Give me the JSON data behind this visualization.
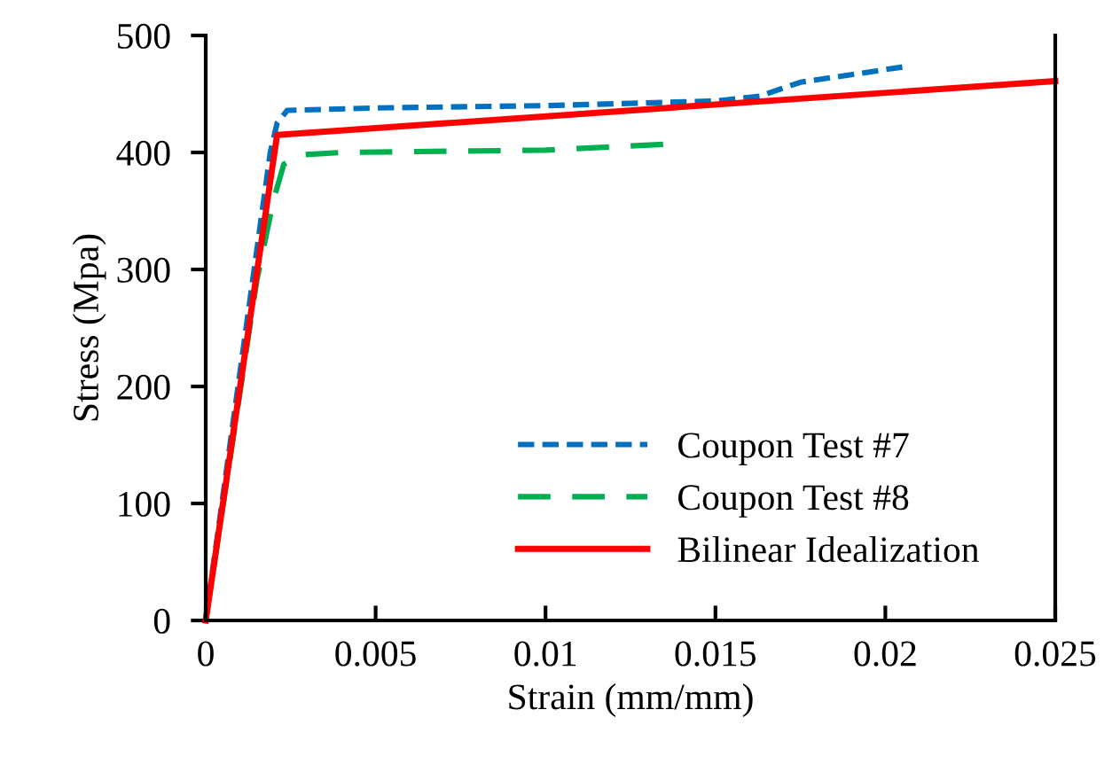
{
  "chart_data": {
    "type": "line",
    "xlabel": "Strain (mm/mm)",
    "ylabel": "Stress (Mpa)",
    "xlim": [
      0,
      0.025
    ],
    "xticks": [
      0,
      0.005,
      0.01,
      0.015,
      0.02,
      0.025
    ],
    "ylim": [
      0,
      500
    ],
    "yticks": [
      0,
      100,
      200,
      300,
      400,
      500
    ],
    "grid": false,
    "legend": "bottom right",
    "series": [
      {
        "name": "Coupon Test #7",
        "color": "#0070c0",
        "line_style": "dotted",
        "x": [
          0,
          0.0019,
          0.0021,
          0.0024,
          0.005,
          0.01,
          0.015,
          0.0163,
          0.0175,
          0.0205
        ],
        "values": [
          0,
          400,
          425,
          436,
          438,
          440,
          444,
          448,
          460,
          473
        ]
      },
      {
        "name": "Coupon Test #8",
        "color": "#00b050",
        "line_style": "dashed",
        "x": [
          0,
          0.0015,
          0.002,
          0.0023,
          0.0028,
          0.004,
          0.01,
          0.0135
        ],
        "values": [
          0,
          290,
          360,
          390,
          398,
          400,
          402,
          407
        ]
      },
      {
        "name": "Bilinear Idealization",
        "color": "#ff0000",
        "line_style": "solid",
        "x": [
          0,
          0.0021,
          0.025
        ],
        "values": [
          0,
          415,
          461
        ]
      }
    ]
  }
}
